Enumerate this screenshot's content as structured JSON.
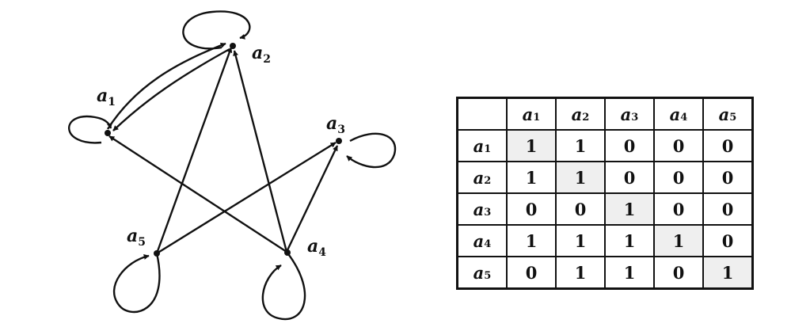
{
  "graph": {
    "nodes": [
      {
        "id": "a1",
        "name": "a",
        "sub": "1"
      },
      {
        "id": "a2",
        "name": "a",
        "sub": "2"
      },
      {
        "id": "a3",
        "name": "a",
        "sub": "3"
      },
      {
        "id": "a4",
        "name": "a",
        "sub": "4"
      },
      {
        "id": "a5",
        "name": "a",
        "sub": "5"
      }
    ],
    "edges": [
      {
        "from": "a1",
        "to": "a1"
      },
      {
        "from": "a1",
        "to": "a2"
      },
      {
        "from": "a2",
        "to": "a1"
      },
      {
        "from": "a2",
        "to": "a2"
      },
      {
        "from": "a3",
        "to": "a3"
      },
      {
        "from": "a4",
        "to": "a1"
      },
      {
        "from": "a4",
        "to": "a2"
      },
      {
        "from": "a4",
        "to": "a3"
      },
      {
        "from": "a4",
        "to": "a4"
      },
      {
        "from": "a5",
        "to": "a2"
      },
      {
        "from": "a5",
        "to": "a3"
      },
      {
        "from": "a5",
        "to": "a5"
      }
    ]
  },
  "matrix": {
    "headers": [
      {
        "name": "a",
        "sub": "1"
      },
      {
        "name": "a",
        "sub": "2"
      },
      {
        "name": "a",
        "sub": "3"
      },
      {
        "name": "a",
        "sub": "4"
      },
      {
        "name": "a",
        "sub": "5"
      }
    ],
    "rows": [
      {
        "name": "a",
        "sub": "1",
        "values": [
          "1",
          "1",
          "0",
          "0",
          "0"
        ]
      },
      {
        "name": "a",
        "sub": "2",
        "values": [
          "1",
          "1",
          "0",
          "0",
          "0"
        ]
      },
      {
        "name": "a",
        "sub": "3",
        "values": [
          "0",
          "0",
          "1",
          "0",
          "0"
        ]
      },
      {
        "name": "a",
        "sub": "4",
        "values": [
          "1",
          "1",
          "1",
          "1",
          "0"
        ]
      },
      {
        "name": "a",
        "sub": "5",
        "values": [
          "0",
          "1",
          "1",
          "0",
          "1"
        ]
      }
    ]
  }
}
